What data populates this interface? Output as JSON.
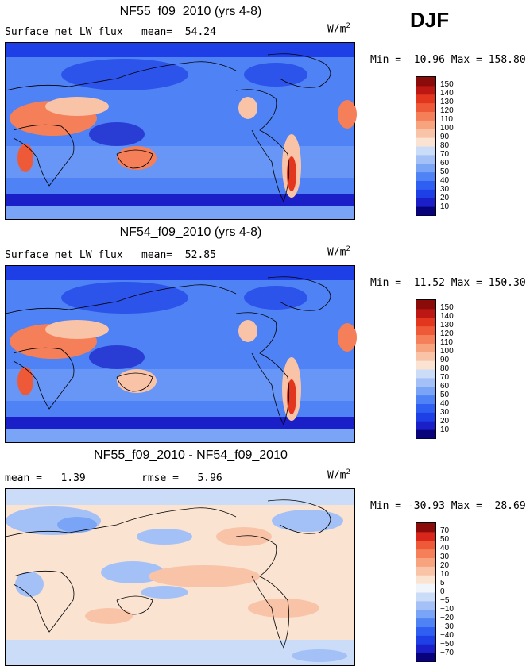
{
  "season": "DJF",
  "panels": [
    {
      "title": "NF55_f09_2010 (yrs 4-8)",
      "left_text": "Surface net LW flux",
      "stat1": "mean=  54.24",
      "stat2": "",
      "units_main": "W/m",
      "units_exp": "2",
      "minmax": "Min =  10.96 Max = 158.80",
      "colorbar": {
        "colors": [
          "#08037a",
          "#1a1fc8",
          "#1e3fe6",
          "#2f5ef2",
          "#4f82f4",
          "#7aa4f6",
          "#a3c1f7",
          "#cbdcf8",
          "#fbe3d2",
          "#f9c3a8",
          "#f7a37e",
          "#f47f58",
          "#ee5a38",
          "#e2361f",
          "#bd1714",
          "#8b0a0a"
        ],
        "labels": [
          "150",
          "140",
          "130",
          "120",
          "110",
          "100",
          "90",
          "80",
          "70",
          "60",
          "50",
          "40",
          "30",
          "20",
          "10"
        ]
      }
    },
    {
      "title": "NF54_f09_2010 (yrs 4-8)",
      "left_text": "Surface net LW flux",
      "stat1": "mean=  52.85",
      "stat2": "",
      "units_main": "W/m",
      "units_exp": "2",
      "minmax": "Min =  11.52 Max = 150.30",
      "colorbar": {
        "colors": [
          "#08037a",
          "#1a1fc8",
          "#1e3fe6",
          "#2f5ef2",
          "#4f82f4",
          "#7aa4f6",
          "#a3c1f7",
          "#cbdcf8",
          "#fbe3d2",
          "#f9c3a8",
          "#f7a37e",
          "#f47f58",
          "#ee5a38",
          "#e2361f",
          "#bd1714",
          "#8b0a0a"
        ],
        "labels": [
          "150",
          "140",
          "130",
          "120",
          "110",
          "100",
          "90",
          "80",
          "70",
          "60",
          "50",
          "40",
          "30",
          "20",
          "10"
        ]
      }
    },
    {
      "title": "NF55_f09_2010 - NF54_f09_2010",
      "left_text": "mean =   1.39",
      "stat1": "rmse =   5.96",
      "stat2": "",
      "units_main": "W/m",
      "units_exp": "2",
      "minmax": "Min = -30.93 Max =  28.69",
      "colorbar": {
        "colors": [
          "#08037a",
          "#1a1fc8",
          "#1e3fe6",
          "#2f5ef2",
          "#4f82f4",
          "#7aa4f6",
          "#a3c1f7",
          "#cbdcf8",
          "#f0f4fb",
          "#fbe3d2",
          "#f9c3a8",
          "#f7a37e",
          "#f47f58",
          "#ee5a38",
          "#d8261a",
          "#8b0a0a"
        ],
        "labels": [
          "70",
          "50",
          "40",
          "30",
          "20",
          "10",
          "5",
          "0",
          "−5",
          "−10",
          "−20",
          "−30",
          "−40",
          "−50",
          "−70"
        ]
      }
    }
  ],
  "chart_data": {
    "type": "heatmap",
    "description_fields": "global maps of surface net longwave flux, DJF",
    "maps": [
      {
        "title": "NF55_f09_2010 (yrs 4-8)",
        "variable": "Surface net LW flux",
        "mean": 54.24,
        "min": 10.96,
        "max": 158.8,
        "units": "W/m2",
        "levels": [
          10,
          20,
          30,
          40,
          50,
          60,
          70,
          80,
          90,
          100,
          110,
          120,
          130,
          140,
          150
        ]
      },
      {
        "title": "NF54_f09_2010 (yrs 4-8)",
        "variable": "Surface net LW flux",
        "mean": 52.85,
        "min": 11.52,
        "max": 150.3,
        "units": "W/m2",
        "levels": [
          10,
          20,
          30,
          40,
          50,
          60,
          70,
          80,
          90,
          100,
          110,
          120,
          130,
          140,
          150
        ]
      },
      {
        "title": "NF55_f09_2010 - NF54_f09_2010",
        "variable": "difference",
        "mean": 1.39,
        "rmse": 5.96,
        "min": -30.93,
        "max": 28.69,
        "units": "W/m2",
        "levels": [
          -70,
          -50,
          -40,
          -30,
          -20,
          -10,
          -5,
          0,
          5,
          10,
          20,
          30,
          40,
          50,
          70
        ]
      }
    ]
  }
}
